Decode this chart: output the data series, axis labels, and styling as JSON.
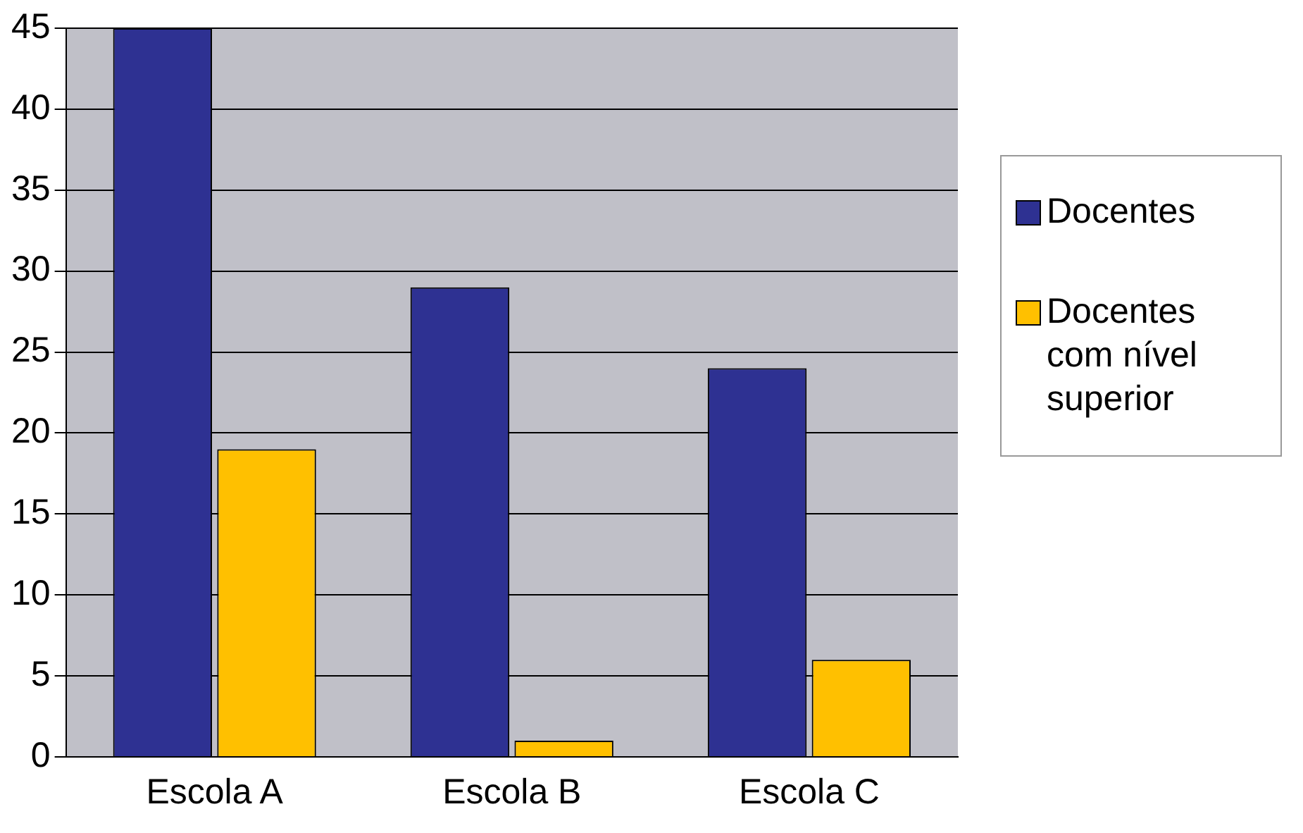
{
  "chart_data": {
    "type": "bar",
    "categories": [
      "Escola A",
      "Escola B",
      "Escola C"
    ],
    "series": [
      {
        "name": "Docentes",
        "color": "#2e3192",
        "values": [
          45,
          29,
          24
        ]
      },
      {
        "name": "Docentes com nível superior",
        "color": "#ffc000",
        "values": [
          19,
          1,
          6
        ]
      }
    ],
    "ylim": [
      0,
      45
    ],
    "yticks": [
      0,
      5,
      10,
      15,
      20,
      25,
      30,
      35,
      40,
      45
    ],
    "grid": "y",
    "legend": "right"
  }
}
